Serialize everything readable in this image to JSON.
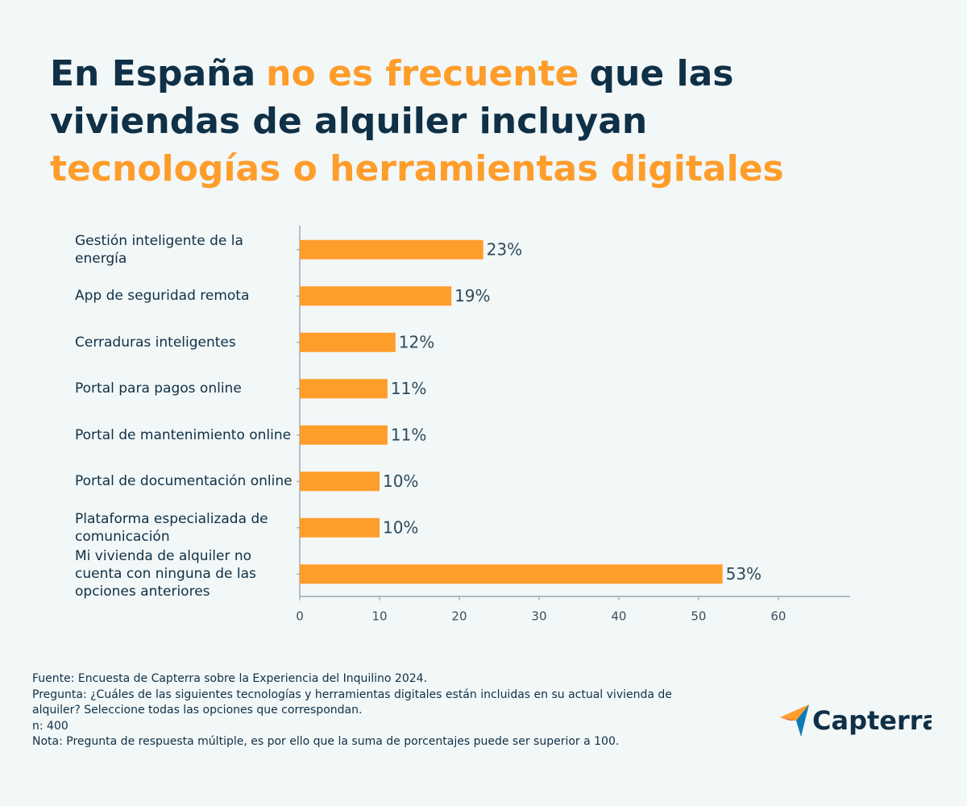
{
  "chart_data": {
    "type": "bar",
    "orientation": "horizontal",
    "title_lines": [
      [
        {
          "text": "En España",
          "color": "#0f3046"
        },
        {
          "text": "no es frecuente",
          "color": "#ff9d2b"
        },
        {
          "text": "que las",
          "color": "#0f3046"
        }
      ],
      [
        {
          "text": "viviendas de alquiler incluyan",
          "color": "#0f3046"
        }
      ],
      [
        {
          "text": "tecnologías o herramientas digitales",
          "color": "#ff9d2b"
        }
      ]
    ],
    "categories": [
      "Gestión inteligente de la energía",
      "App de seguridad remota",
      "Cerraduras inteligentes",
      "Portal para pagos online",
      "Portal de mantenimiento online",
      "Portal de documentación online",
      "Plataforma especializada de\ncomunicación",
      "Mi vivienda de alquiler no\ncuenta con ninguna de las\nopciones anteriores"
    ],
    "values": [
      23,
      19,
      12,
      11,
      11,
      10,
      10,
      53
    ],
    "value_labels": [
      "23%",
      "19%",
      "12%",
      "11%",
      "11%",
      "10%",
      "10%",
      "53%"
    ],
    "color": "#ff9d2b",
    "xlim": [
      0,
      69
    ],
    "xticks": [
      0,
      10,
      20,
      30,
      40,
      50,
      60
    ],
    "grid": false
  },
  "footer": [
    "Fuente: Encuesta de Capterra sobre la Experiencia del Inquilino 2024.",
    "Pregunta: ¿Cuáles de las siguientes tecnologías y herramientas digitales están incluidas en su actual vivienda de",
    "alquiler? Seleccione todas las opciones que correspondan.",
    "n: 400",
    "Nota: Pregunta de respuesta múltiple, es por ello que la suma de porcentajes puede ser superior a 100."
  ],
  "logo_text": "Capterra"
}
